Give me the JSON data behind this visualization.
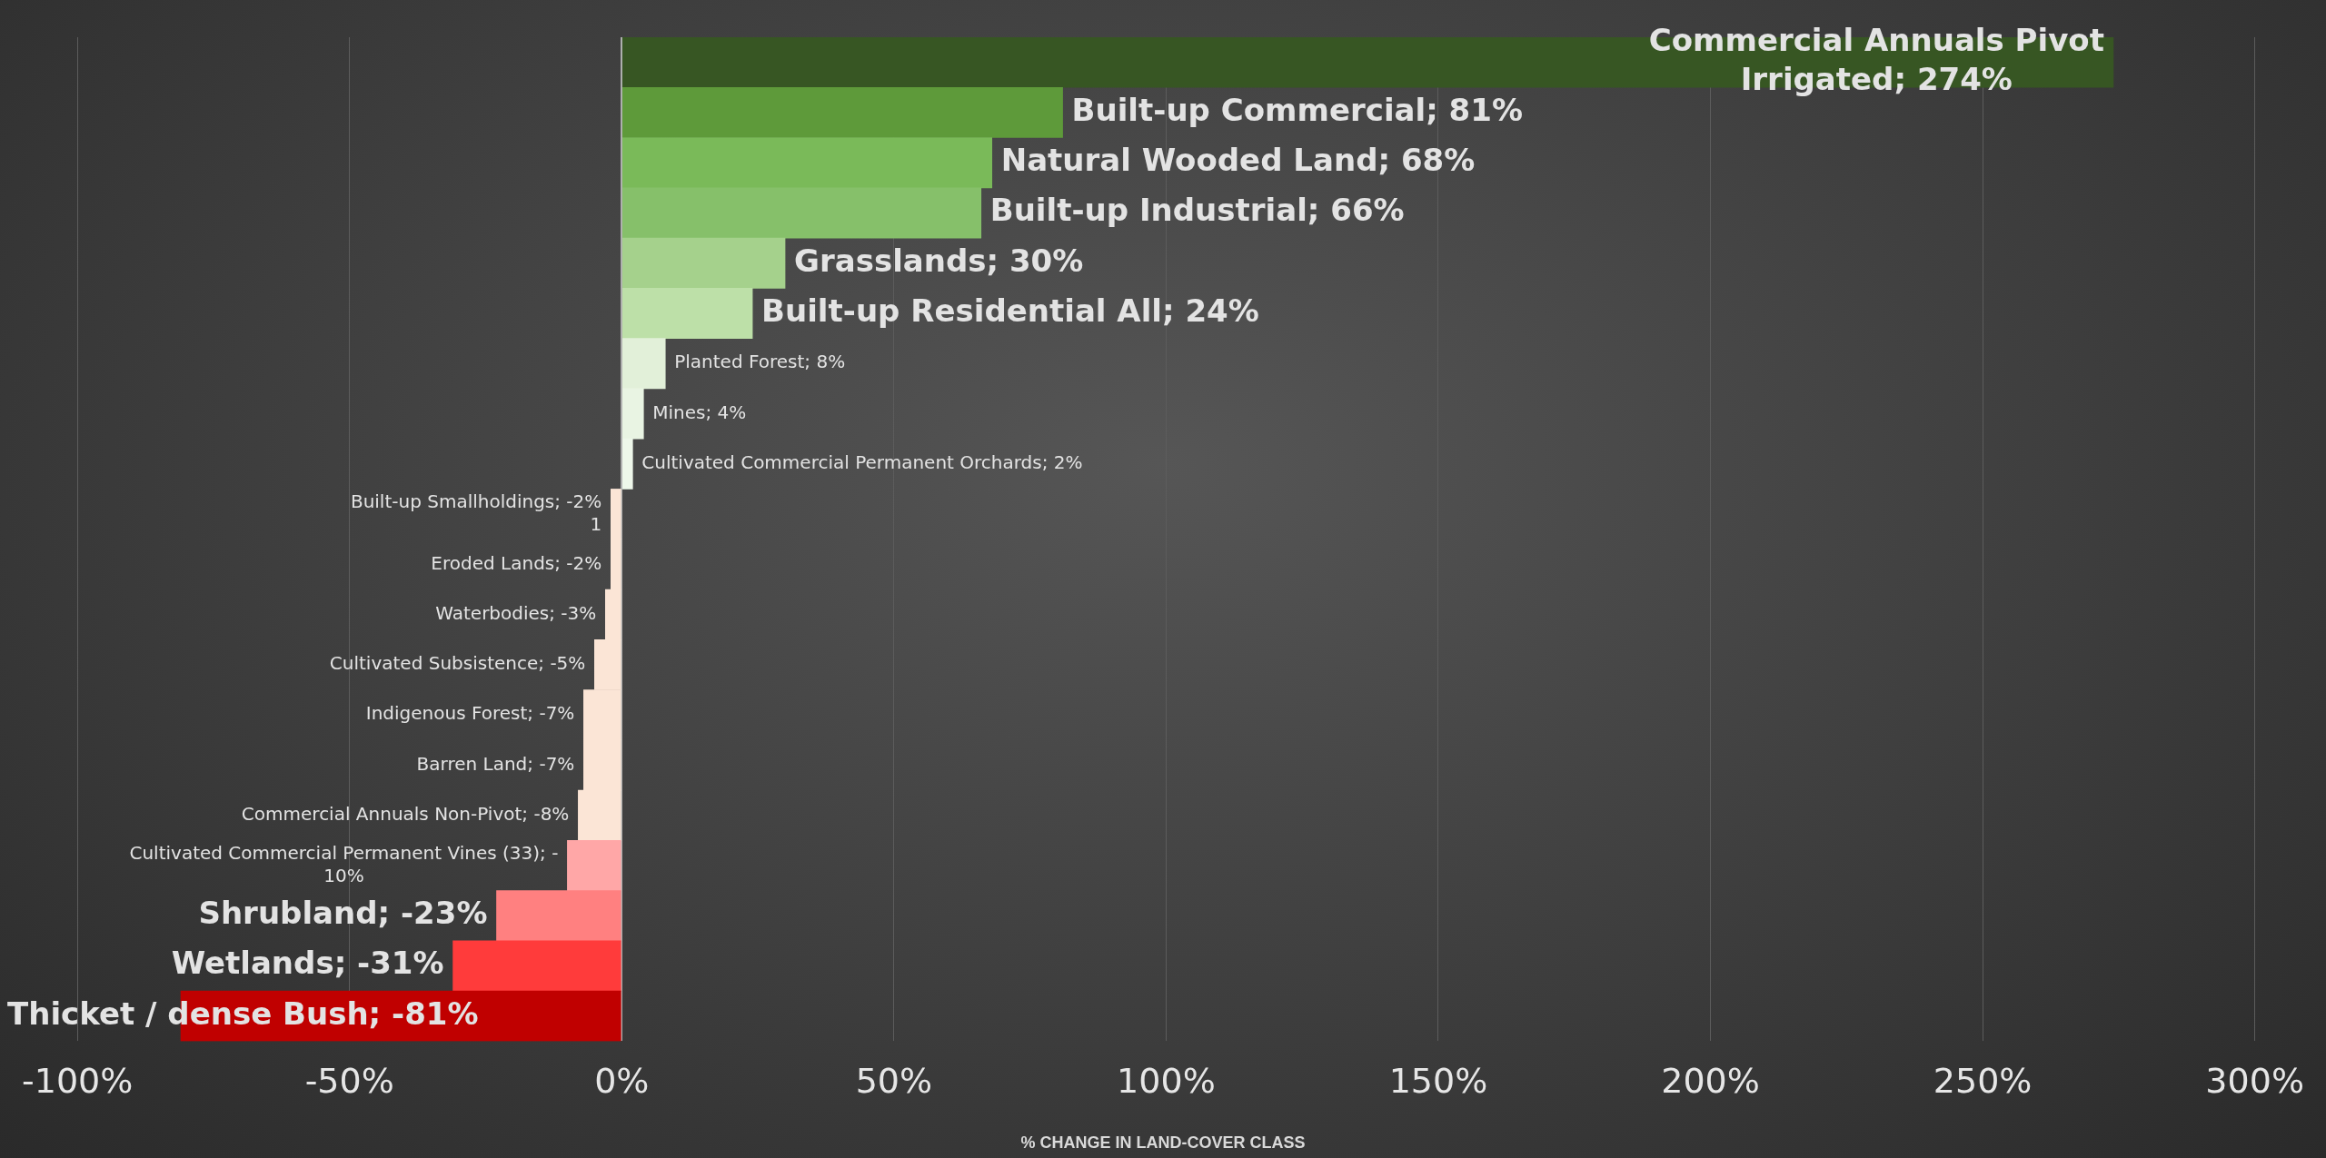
{
  "chart_data": {
    "type": "bar",
    "orientation": "horizontal",
    "xlabel": "% CHANGE IN LAND-COVER CLASS",
    "categories": [
      null,
      null,
      null,
      null,
      null,
      null,
      null,
      null,
      null,
      null,
      null,
      null,
      null,
      null,
      null,
      null,
      null,
      null,
      null,
      null
    ],
    "values": [
      274,
      81,
      68,
      66,
      30,
      24,
      8,
      4,
      2,
      -2,
      -2,
      -3,
      -5,
      -7,
      -7,
      -8,
      -10,
      -23,
      -31,
      -81
    ],
    "colors": [
      "#375623",
      "#5e9a3a",
      "#7aba59",
      "#86c06a",
      "#a5d18c",
      "#bde0a8",
      "#e2f0d9",
      "#e9f4e3",
      "#eef7ea",
      "#fbe5d6",
      "#fbe5d6",
      "#fbe5d6",
      "#fbe5d6",
      "#fbe5d6",
      "#fbe5d6",
      "#fbe5d6",
      "#ffa7a7",
      "#ff8080",
      "#ff3b3b",
      "#c00000"
    ],
    "value_labels": [
      "Commercial Annuals Pivot\nIrrigated; 274%",
      "Built-up Commercial; 81%",
      "Natural Wooded Land; 68%",
      "Built-up Industrial; 66%",
      "Grasslands; 30%",
      "Built-up Residential All; 24%",
      "Planted Forest; 8%",
      "Mines; 4%",
      "Cultivated Commercial Permanent Orchards; 2%",
      "Built-up Smallholdings; -2%\n1",
      "Eroded Lands; -2%",
      "Waterbodies; -3%",
      "Cultivated Subsistence; -5%",
      "Indigenous Forest; -7%",
      "Barren Land; -7%",
      "Commercial Annuals Non-Pivot; -8%",
      "Cultivated Commercial Permanent Vines (33); -10%",
      "Shrubland; -23%",
      "Wetlands; -31%",
      "Thicket / dense Bush; -81%"
    ],
    "xlim": [
      -100,
      300
    ],
    "xticks": [
      {
        "value": -100,
        "label": "-100%"
      },
      {
        "value": -50,
        "label": "-50%"
      },
      {
        "value": 0,
        "label": "0%"
      },
      {
        "value": 50,
        "label": "50%"
      },
      {
        "value": 100,
        "label": "100%"
      },
      {
        "value": 150,
        "label": "150%"
      },
      {
        "value": 200,
        "label": "200%"
      },
      {
        "value": 250,
        "label": "250%"
      },
      {
        "value": 300,
        "label": "300%"
      }
    ],
    "grid": "x",
    "legend": false
  }
}
